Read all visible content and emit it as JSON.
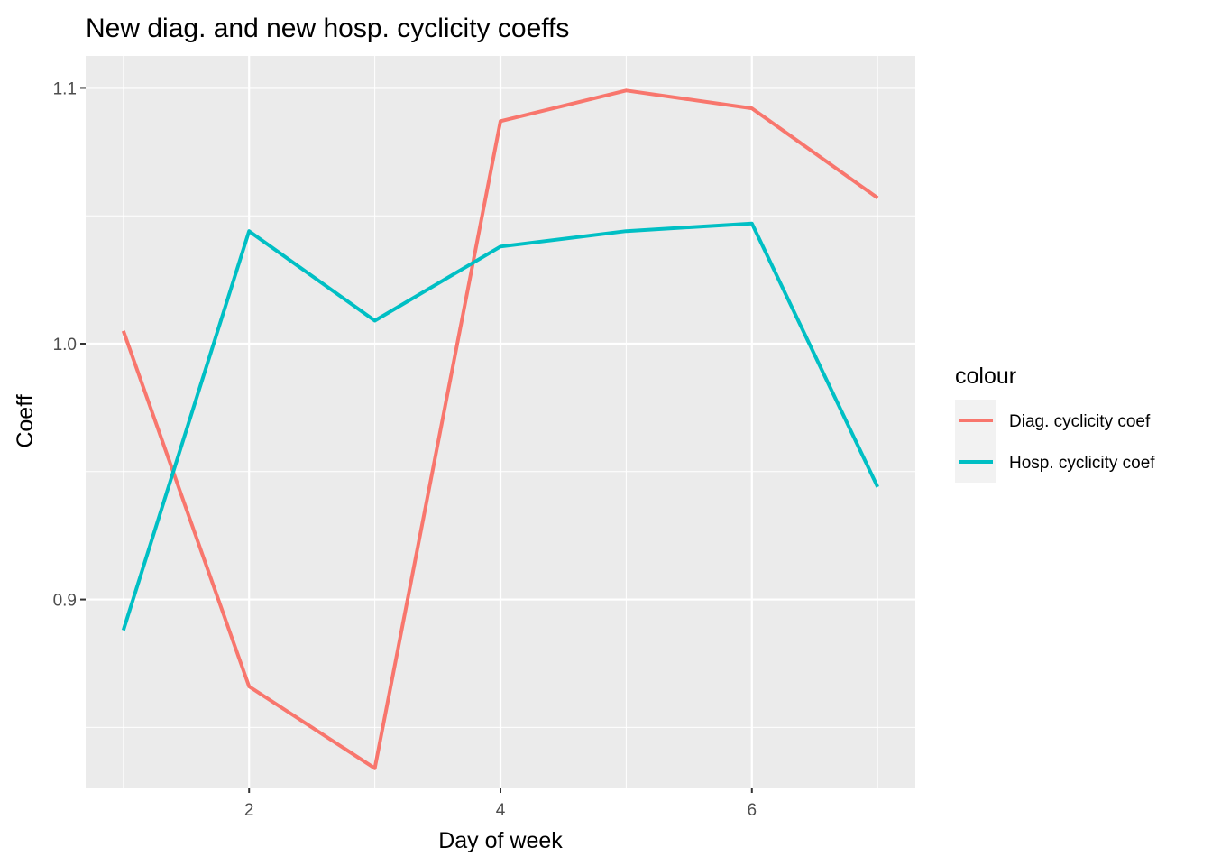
{
  "chart_data": {
    "type": "line",
    "title": "New diag. and new hosp. cyclicity coeffs",
    "xlabel": "Day of week",
    "ylabel": "Coeff",
    "x": [
      1,
      2,
      3,
      4,
      5,
      6,
      7
    ],
    "series": [
      {
        "name": "Diag. cyclicity coef",
        "color": "#F8766D",
        "values": [
          1.005,
          0.866,
          0.834,
          1.087,
          1.099,
          1.092,
          1.057
        ]
      },
      {
        "name": "Hosp. cyclicity coef",
        "color": "#00BFC4",
        "values": [
          0.888,
          1.044,
          1.009,
          1.038,
          1.044,
          1.047,
          0.944
        ]
      }
    ],
    "xlim": [
      0.7,
      7.3
    ],
    "ylim": [
      0.8265,
      1.1125
    ],
    "x_ticks": [
      2,
      4,
      6
    ],
    "x_tick_labels": [
      "2",
      "4",
      "6"
    ],
    "y_ticks": [
      0.9,
      1.0,
      1.1
    ],
    "y_tick_labels": [
      "0.9",
      "1.0",
      "1.1"
    ],
    "legend": {
      "title": "colour",
      "position": "right"
    },
    "grid": true,
    "panel_background": "#EBEBEB"
  }
}
